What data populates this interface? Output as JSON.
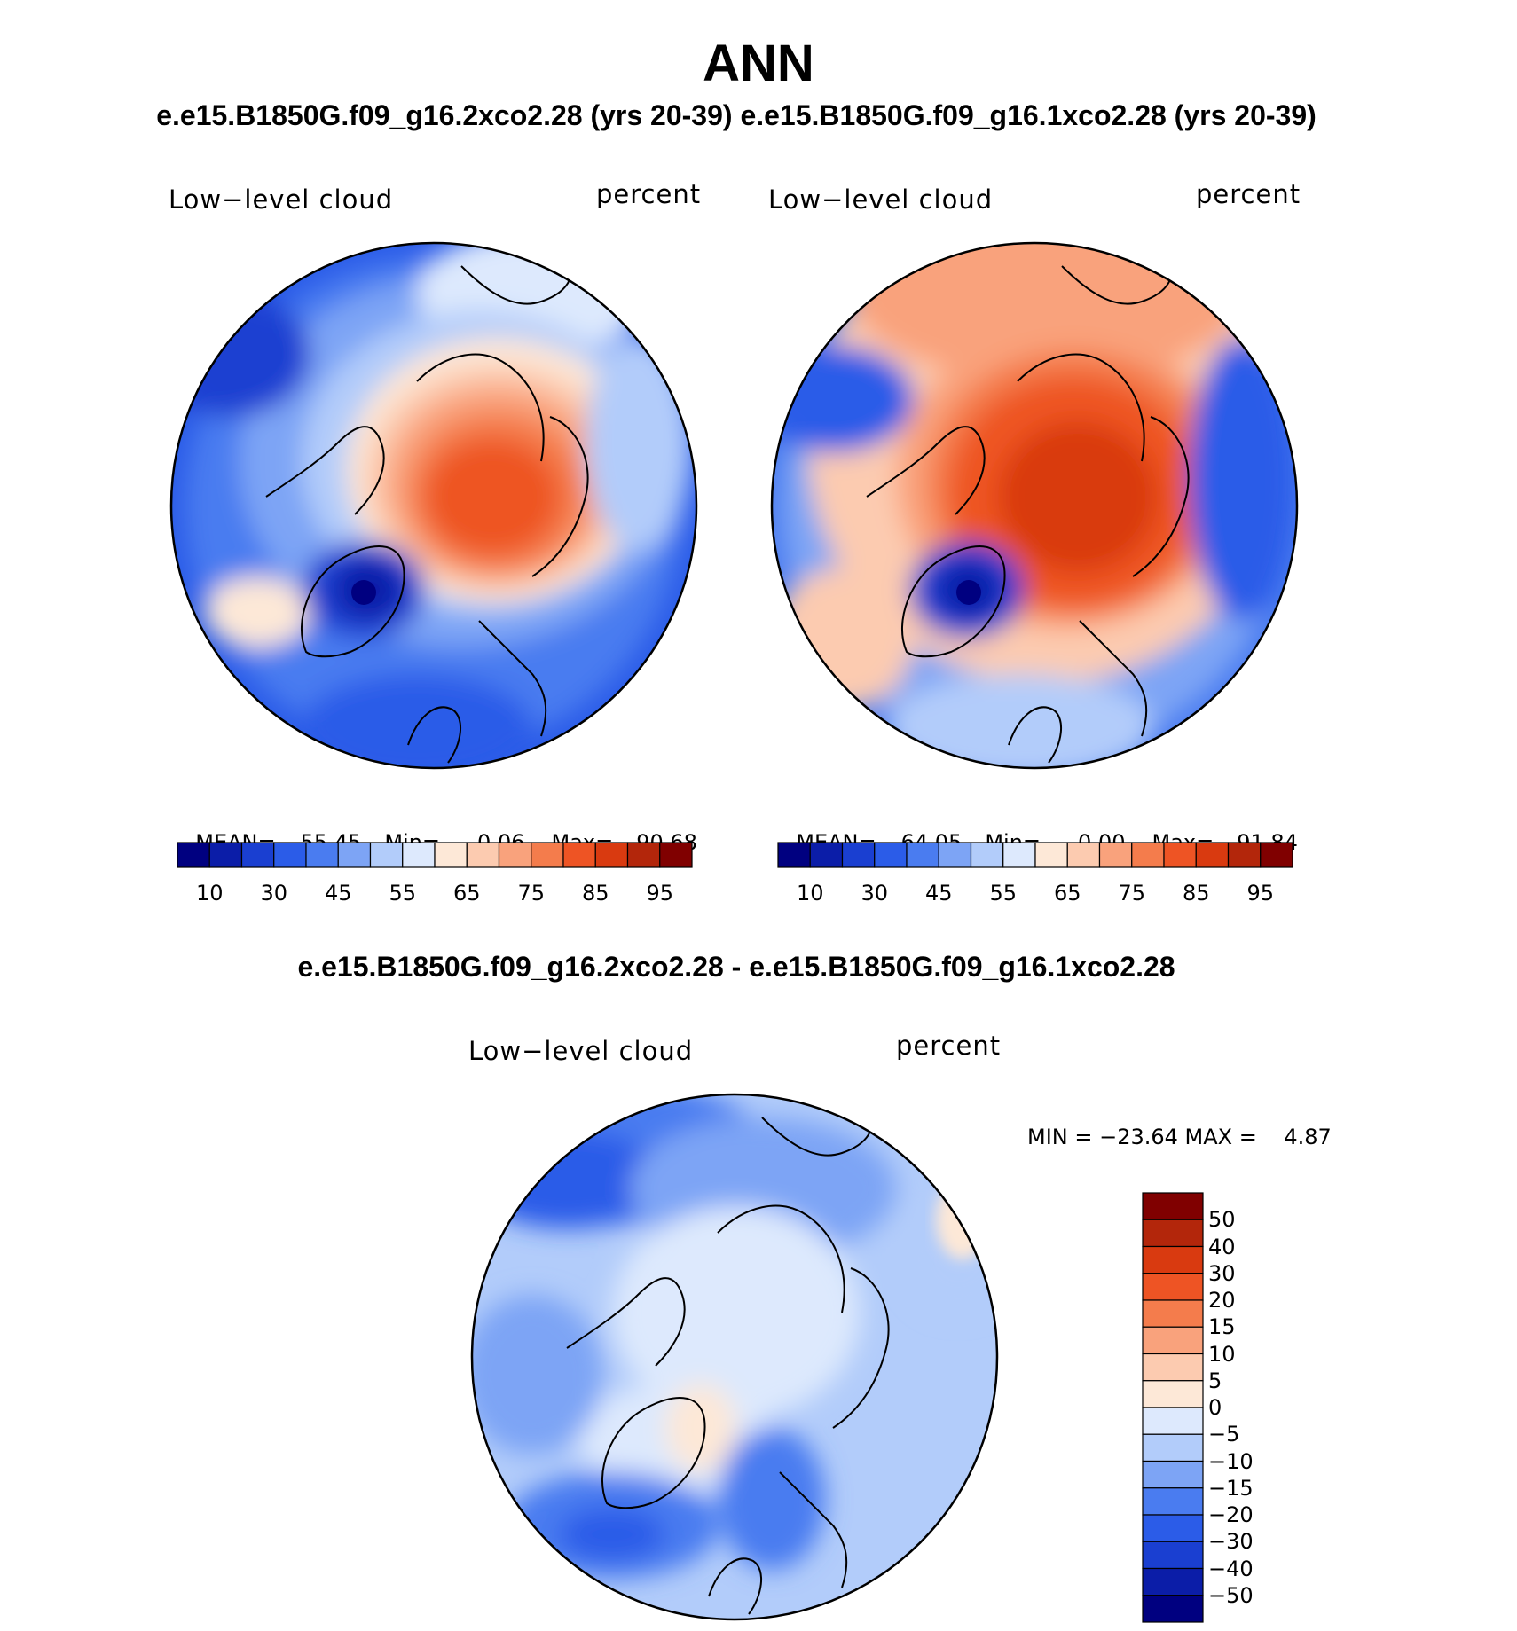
{
  "header": {
    "title": "ANN",
    "subtitle": "e.e15.B1850G.f09_g16.2xco2.28 (yrs 20-39) e.e15.B1850G.f09_g16.1xco2.28 (yrs 20-39)"
  },
  "panels": [
    {
      "variable": "Low−level cloud",
      "units": "percent",
      "mean_label": "MEAN=",
      "mean": "55.45",
      "min_label": "Min=",
      "min": "0.06",
      "max_label": "Max=",
      "max": "90.68",
      "pole_value": 80,
      "colorbar_ticks": [
        "10",
        "30",
        "45",
        "55",
        "65",
        "75",
        "85",
        "95"
      ]
    },
    {
      "variable": "Low−level cloud",
      "units": "percent",
      "mean_label": "MEAN=",
      "mean": "64.05",
      "min_label": "Min=",
      "min": "0.00",
      "max_label": "Max=",
      "max": "91.84",
      "pole_value": 86,
      "colorbar_ticks": [
        "10",
        "30",
        "45",
        "55",
        "65",
        "75",
        "85",
        "95"
      ]
    }
  ],
  "difference": {
    "title": "e.e15.B1850G.f09_g16.2xco2.28 - e.e15.B1850G.f09_g16.1xco2.28",
    "variable": "Low−level cloud",
    "units": "percent",
    "minmax": "MIN = −23.64 MAX =    4.87",
    "colorbar_ticks": [
      "50",
      "40",
      "30",
      "20",
      "15",
      "10",
      "5",
      "0",
      "−5",
      "−10",
      "−15",
      "−20",
      "−30",
      "−40",
      "−50"
    ]
  },
  "colors": {
    "abs_scale": [
      "#000080",
      "#0b1da8",
      "#1a3fd1",
      "#2b5ce8",
      "#4a7cf0",
      "#7da4f5",
      "#b2ccfa",
      "#dde9fd",
      "#fde8d7",
      "#fccbb0",
      "#f9a27c",
      "#f47c4c",
      "#ee5424",
      "#d93a10",
      "#b3260b",
      "#800000"
    ],
    "diff_scale": [
      "#800000",
      "#b3260b",
      "#d93a10",
      "#ee5424",
      "#f47c4c",
      "#f9a27c",
      "#fccbb0",
      "#fde8d7",
      "#dde9fd",
      "#b2ccfa",
      "#7da4f5",
      "#4a7cf0",
      "#2b5ce8",
      "#1a3fd1",
      "#0b1da8",
      "#000080"
    ]
  }
}
